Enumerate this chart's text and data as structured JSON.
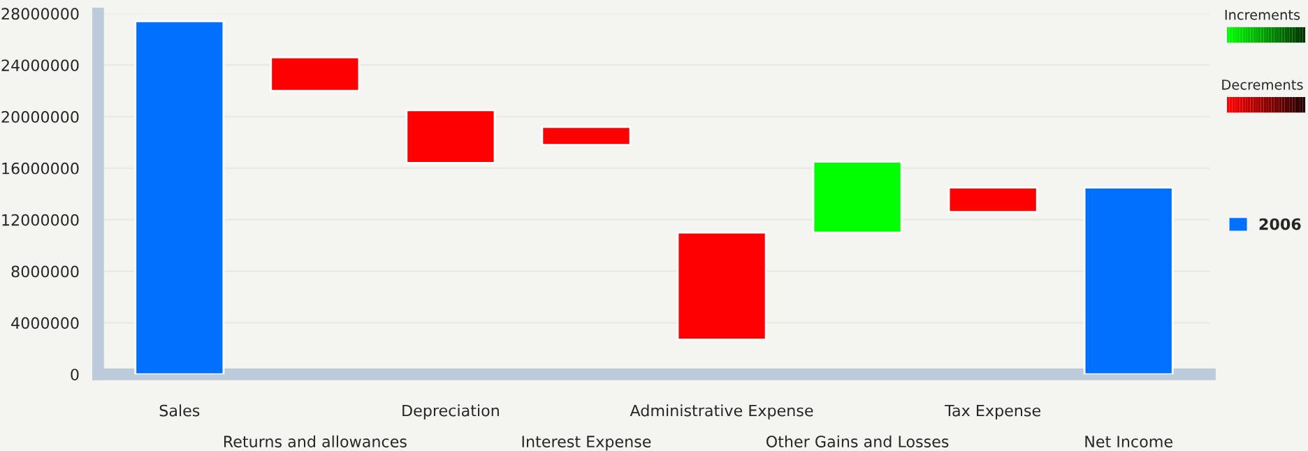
{
  "chart_data": {
    "type": "bar",
    "categories": [
      "Sales",
      "Returns and allowances",
      "Depreciation",
      "Interest Expense",
      "Administrative Expense",
      "Other Gains and Losses",
      "Tax Expense",
      "Net Income"
    ],
    "series": [
      {
        "name": "2006",
        "color": "#0070ff",
        "base": [
          0,
          22000000,
          16400000,
          17800000,
          2700000,
          11000000,
          12600000,
          0
        ],
        "colors": [
          "#0070ff",
          "#ff0000",
          "#ff0000",
          "#ff0000",
          "#ff0000",
          "#00ff00",
          "#ff0000",
          "#0070ff"
        ],
        "values": [
          27400000,
          2600000,
          4100000,
          1400000,
          8300000,
          5500000,
          1900000,
          14500000
        ]
      }
    ],
    "annotations": [
      "Increments",
      "Decrements"
    ],
    "ylim": [
      0,
      28000000
    ],
    "yticks": [
      0,
      4000000,
      8000000,
      12000000,
      16000000,
      20000000,
      24000000,
      28000000
    ],
    "grid": "y",
    "legend": "right"
  }
}
